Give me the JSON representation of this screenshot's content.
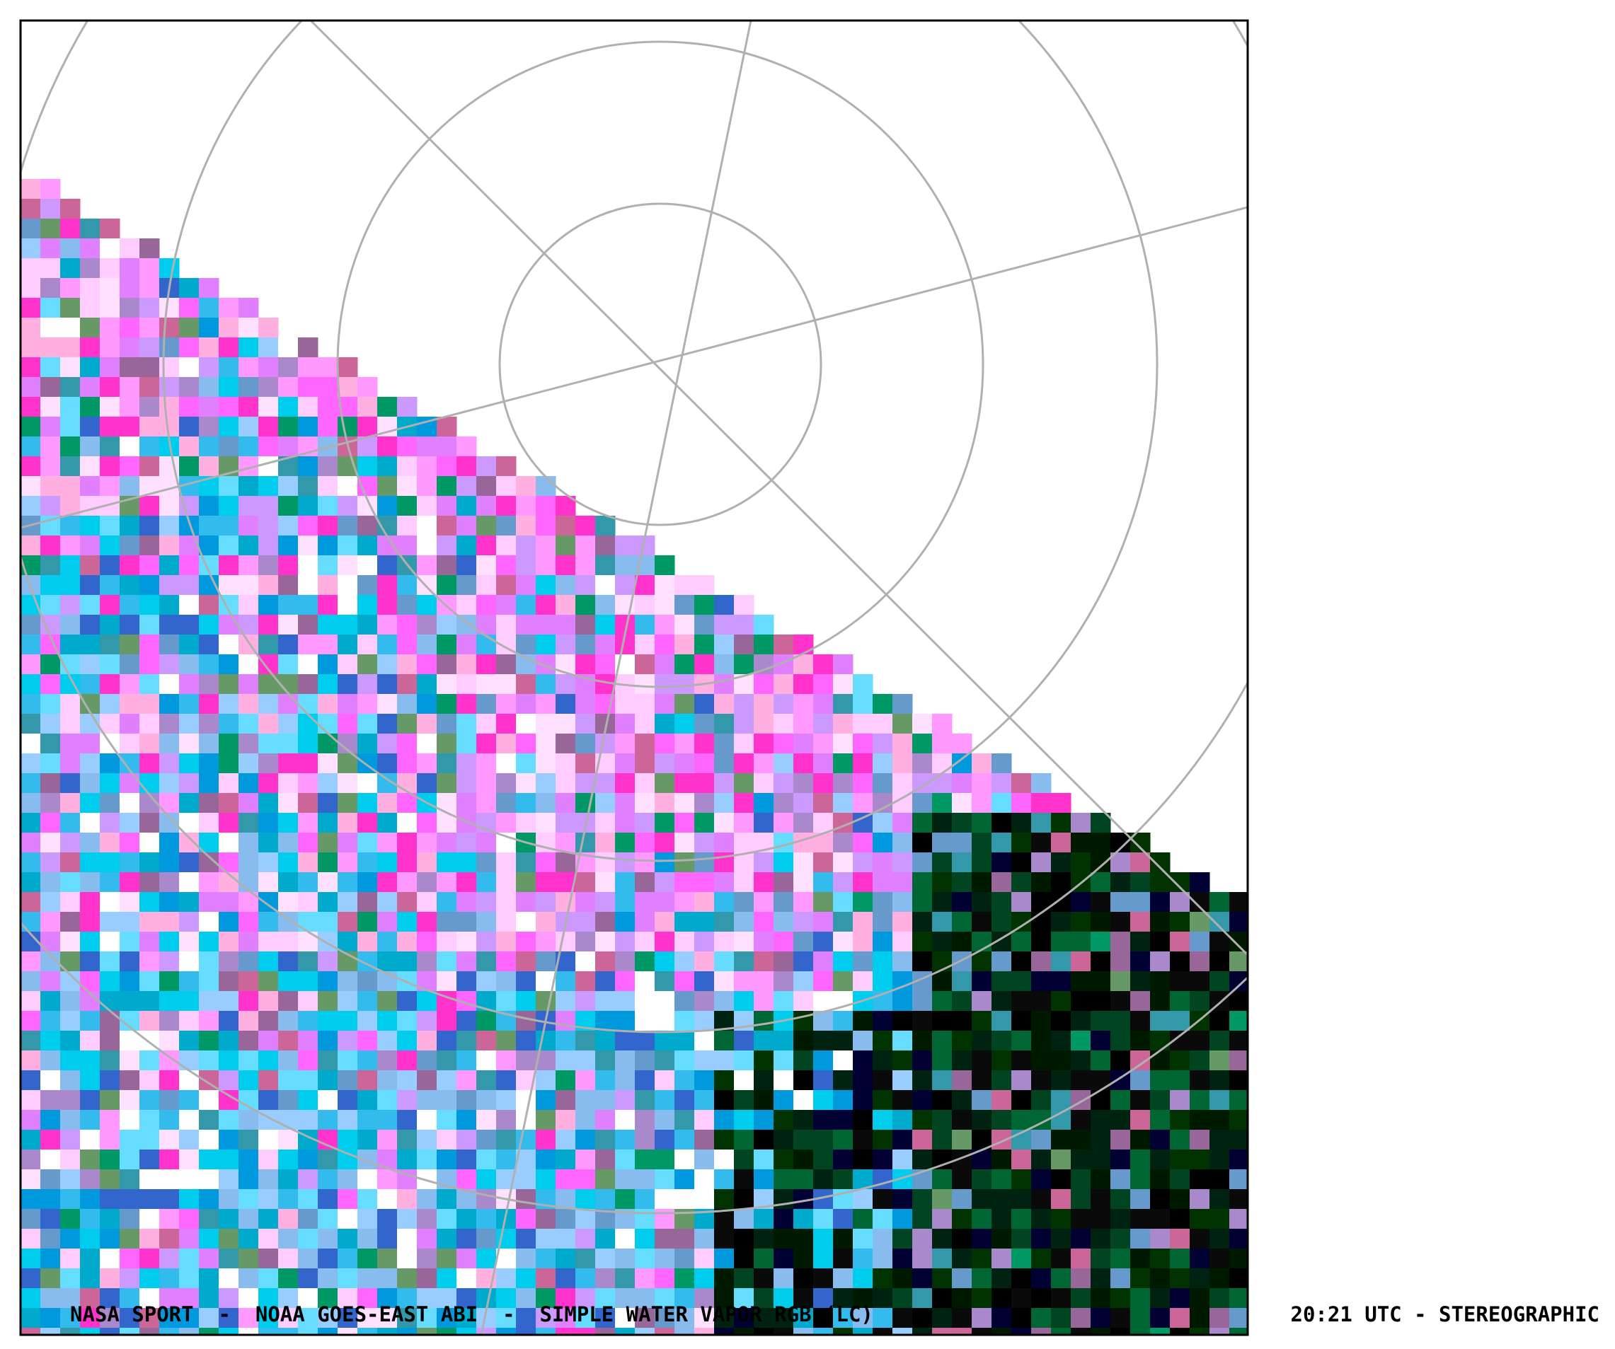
{
  "footer": {
    "left": "NASA SPORT  -  NOAA GOES-EAST ABI  -  SIMPLE WATER VAPOR RGB (LC)",
    "right": "20:21 UTC - STEREOGRAPHIC"
  }
}
